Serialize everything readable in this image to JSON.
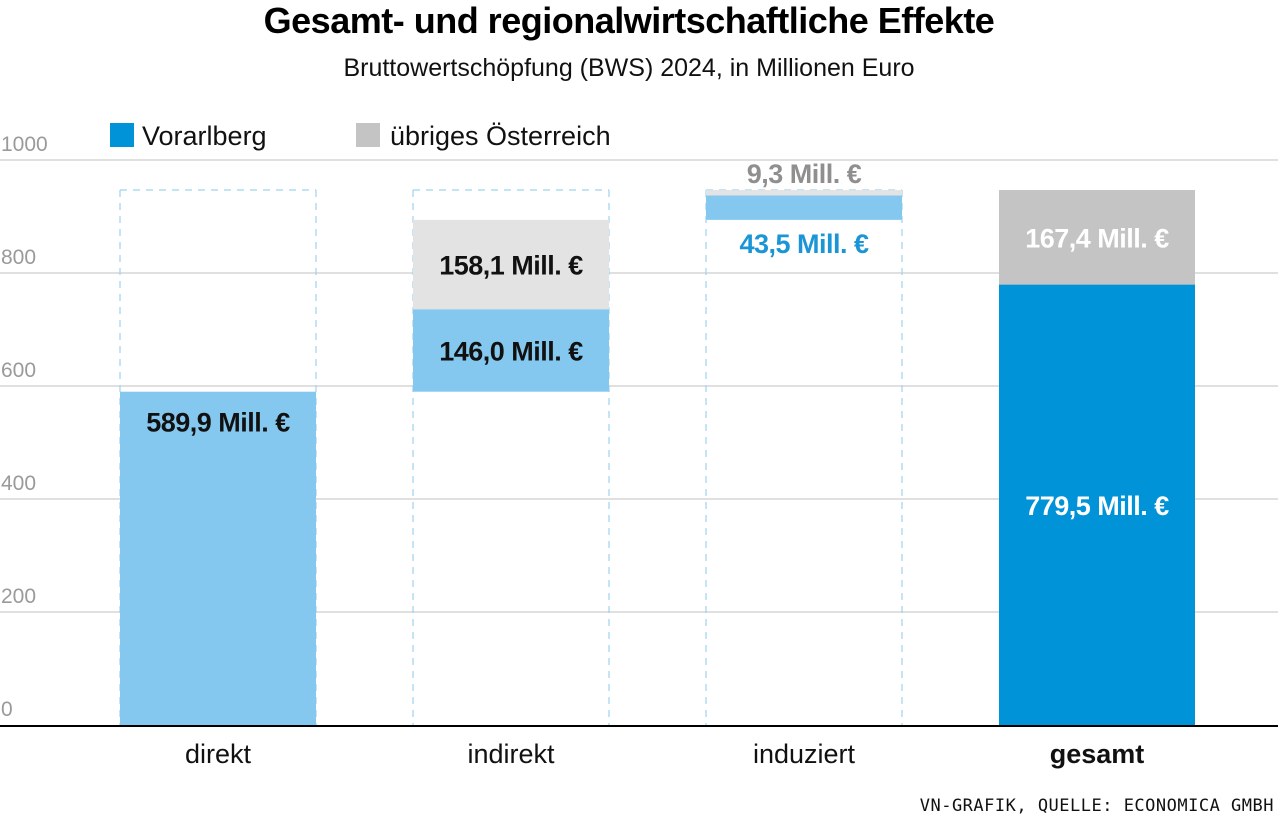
{
  "title": "Gesamt- und regionalwirtschaftliche Effekte",
  "subtitle": "Bruttowertschöpfung (BWS) 2024, in Millionen Euro",
  "source": "VN-GRAFIK, QUELLE: ECONOMICA GMBH",
  "colors": {
    "vorarlberg_light": "#85c8ef",
    "vorarlberg_dark": "#0093d8",
    "oesterreich_light": "#e3e3e3",
    "oesterreich_dark": "#c4c4c4",
    "grid": "#d6d6d6",
    "dashed": "#9fd3f1",
    "label_blue": "#1a96d6",
    "label_gray": "#8f8f8f"
  },
  "chart_data": {
    "type": "bar",
    "stacked": true,
    "waterfall": true,
    "categories": [
      "direkt",
      "indirekt",
      "induziert",
      "gesamt"
    ],
    "series": [
      {
        "name": "Vorarlberg",
        "values": [
          589.9,
          146.0,
          43.5,
          779.5
        ]
      },
      {
        "name": "übriges Österreich",
        "values": [
          0,
          158.1,
          9.3,
          167.4
        ]
      }
    ],
    "labels": {
      "vorarlberg": [
        "589,9 Mill. €",
        "146,0 Mill. €",
        "43,5 Mill. €",
        "779,5 Mill. €"
      ],
      "oesterreich": [
        "",
        "158,1 Mill. €",
        "9,3 Mill. €",
        "167,4 Mill. €"
      ]
    },
    "yticks": [
      "0",
      "200",
      "400",
      "600",
      "800",
      "1000"
    ],
    "ylim": [
      0,
      1000
    ],
    "grid": true,
    "legend_position": "top-left"
  }
}
